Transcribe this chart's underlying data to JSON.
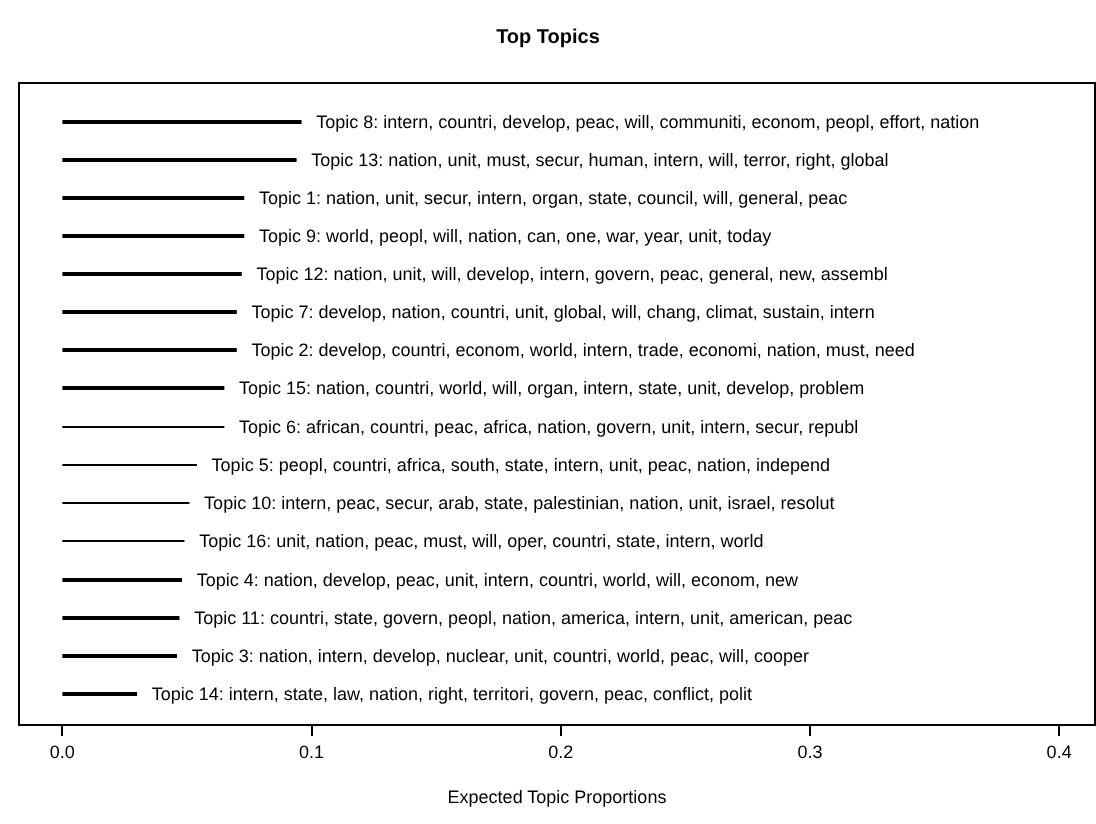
{
  "chart_data": {
    "type": "bar",
    "orientation": "horizontal",
    "title": "Top Topics",
    "xlabel": "Expected Topic Proportions",
    "categories": [
      "Topic 8: intern, countri, develop, peac, will, communiti, econom, peopl, effort, nation",
      "Topic 13: nation, unit, must, secur, human, intern, will, terror, right, global",
      "Topic 1: nation, unit, secur, intern, organ, state, council, will, general, peac",
      "Topic 9: world, peopl, will, nation, can, one, war, year, unit, today",
      "Topic 12: nation, unit, will, develop, intern, govern, peac, general, new, assembl",
      "Topic 7: develop, nation, countri, unit, global, will, chang, climat, sustain, intern",
      "Topic 2: develop, countri, econom, world, intern, trade, economi, nation, must, need",
      "Topic 15: nation, countri, world, will, organ, intern, state, unit, develop, problem",
      "Topic 6: african, countri, peac, africa, nation, govern, unit, intern, secur, republ",
      "Topic 5: peopl, countri, africa, south, state, intern, unit, peac, nation, independ",
      "Topic 10: intern, peac, secur, arab, state, palestinian, nation, unit, israel, resolut",
      "Topic 16: unit, nation, peac, must, will, oper, countri, state, intern, world",
      "Topic 4: nation, develop, peac, unit, intern, countri, world, will, econom, new",
      "Topic 11: countri, state, govern, peopl, nation, america, intern, unit, american, peac",
      "Topic 3: nation, intern, develop, nuclear, unit, countri, world, peac, will, cooper",
      "Topic 14: intern, state, law, nation, right, territori, govern, peac, conflict, polit"
    ],
    "values": [
      0.096,
      0.094,
      0.073,
      0.073,
      0.072,
      0.07,
      0.07,
      0.065,
      0.065,
      0.054,
      0.051,
      0.049,
      0.048,
      0.047,
      0.046,
      0.03
    ],
    "color": "#000000",
    "xlim": [
      -0.017,
      0.414
    ],
    "xticks": [
      {
        "value": 0,
        "label": "0.0"
      },
      0.1,
      0.2,
      0.3,
      0.4
    ],
    "tick_labels": "x",
    "legend": false
  }
}
